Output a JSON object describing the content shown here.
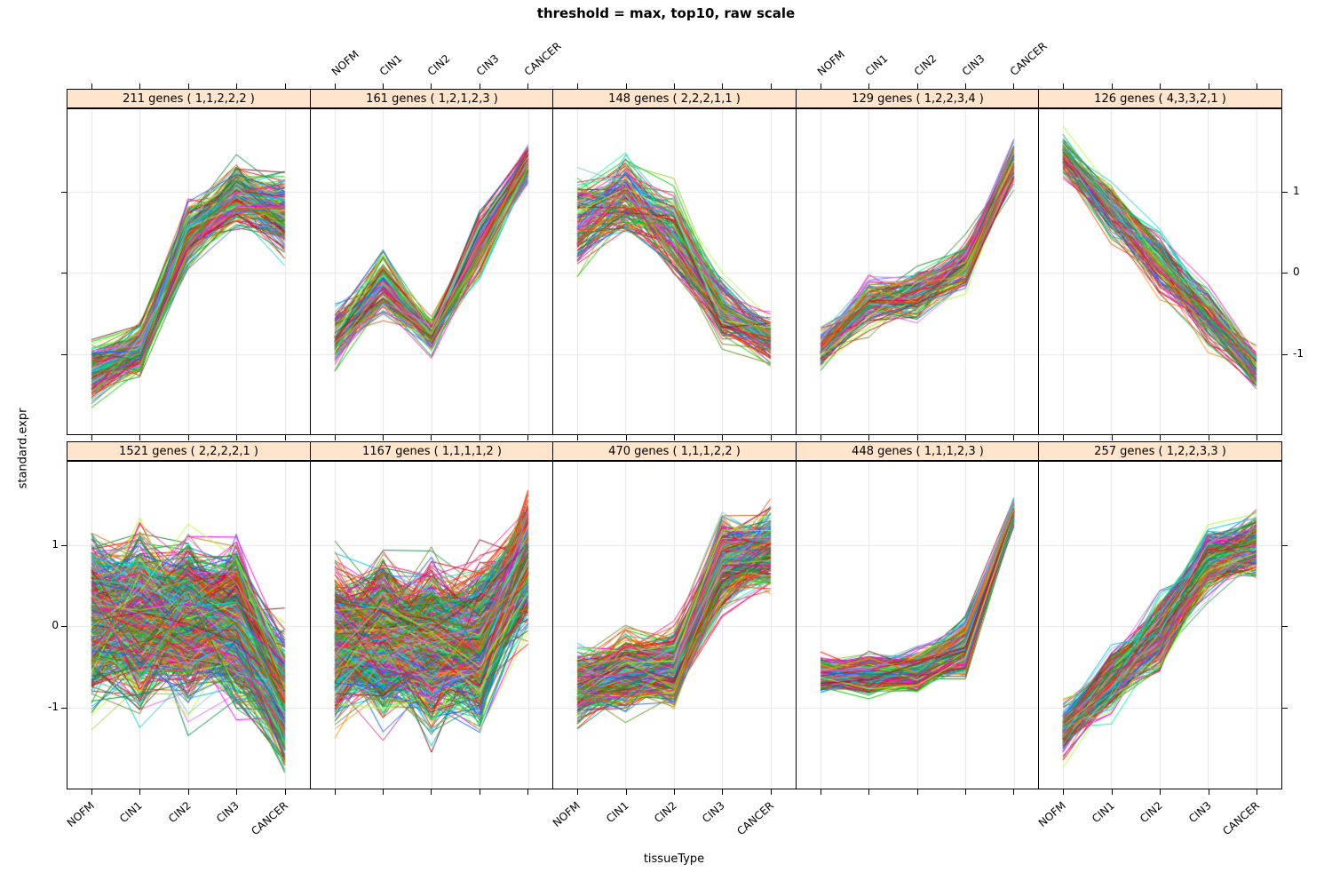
{
  "chart_data": {
    "type": "line",
    "title": "threshold = max, top10, raw scale",
    "xlabel": "tissueType",
    "ylabel": "standard.expr",
    "categories": [
      "NOFM",
      "CIN1",
      "CIN2",
      "CIN3",
      "CANCER"
    ],
    "ylim": [
      -2,
      2
    ],
    "yticks": [
      1,
      0,
      -1
    ],
    "grid": true,
    "strip_fill": "#ffe5cc",
    "grid_color": "#e6e6e6",
    "border_color": "#000000",
    "line_colors": [
      "#ff0000",
      "#00cd00",
      "#0066ff",
      "#ff00ff",
      "#ff8c00",
      "#008b45",
      "#8b2323",
      "#00cdcd",
      "#9acd32",
      "#cd2990",
      "#ff4500",
      "#228b22",
      "#4169e1",
      "#b8860b",
      "#00fa9a",
      "#dc143c",
      "#00bfff",
      "#adff2f",
      "#d2691e",
      "#e066ff",
      "#2e8b57",
      "#ff1493",
      "#7ac5cd",
      "#6b8e23"
    ],
    "layout_hints": {
      "rows": 2,
      "cols": 5,
      "x_label_rotation": 45,
      "top_x_labels_above_columns": [
        2,
        4
      ],
      "bottom_x_labels_below_columns": [
        1,
        3,
        5
      ],
      "y_labels_right_for_row": 1,
      "y_labels_left_for_row": 2,
      "legend": "none"
    },
    "panels": [
      {
        "row": 0,
        "col": 0,
        "label": "211 genes ( 1,1,2,2,2 )",
        "genes": 211,
        "pattern": [
          1,
          1,
          2,
          2,
          2
        ],
        "mean": [
          -1.25,
          -0.95,
          0.45,
          0.95,
          0.7
        ],
        "spread": [
          0.35,
          0.3,
          0.4,
          0.4,
          0.5
        ]
      },
      {
        "row": 0,
        "col": 1,
        "label": "161 genes ( 1,2,1,2,3 )",
        "genes": 161,
        "pattern": [
          1,
          2,
          1,
          2,
          3
        ],
        "mean": [
          -0.8,
          -0.15,
          -0.75,
          0.35,
          1.35
        ],
        "spread": [
          0.32,
          0.4,
          0.2,
          0.35,
          0.25
        ]
      },
      {
        "row": 0,
        "col": 2,
        "label": "148 genes ( 2,2,2,1,1 )",
        "genes": 148,
        "pattern": [
          2,
          2,
          2,
          1,
          1
        ],
        "mean": [
          0.6,
          0.9,
          0.45,
          -0.5,
          -0.85
        ],
        "spread": [
          0.55,
          0.45,
          0.5,
          0.4,
          0.3
        ]
      },
      {
        "row": 0,
        "col": 3,
        "label": "129 genes ( 1,2,2,3,4 )",
        "genes": 129,
        "pattern": [
          1,
          2,
          2,
          3,
          4
        ],
        "mean": [
          -0.95,
          -0.4,
          -0.3,
          0.1,
          1.35
        ],
        "spread": [
          0.25,
          0.3,
          0.3,
          0.3,
          0.25
        ]
      },
      {
        "row": 0,
        "col": 4,
        "label": "126 genes ( 4,3,3,2,1 )",
        "genes": 126,
        "pattern": [
          4,
          3,
          3,
          2,
          1
        ],
        "mean": [
          1.45,
          0.75,
          0.1,
          -0.55,
          -1.2
        ],
        "spread": [
          0.25,
          0.35,
          0.4,
          0.35,
          0.25
        ]
      },
      {
        "row": 1,
        "col": 0,
        "label": "1521 genes ( 2,2,2,2,1 )",
        "genes": 1521,
        "pattern": [
          2,
          2,
          2,
          2,
          1
        ],
        "mean": [
          0.1,
          0.1,
          0.1,
          0.05,
          -0.9
        ],
        "spread": [
          0.92,
          0.92,
          0.92,
          0.92,
          0.75
        ]
      },
      {
        "row": 1,
        "col": 1,
        "label": "1167 genes ( 1,1,1,1,2 )",
        "genes": 1167,
        "pattern": [
          1,
          1,
          1,
          1,
          2
        ],
        "mean": [
          -0.2,
          -0.2,
          -0.25,
          -0.2,
          0.8
        ],
        "spread": [
          0.85,
          0.9,
          0.9,
          0.9,
          0.7
        ]
      },
      {
        "row": 1,
        "col": 2,
        "label": "470 genes ( 1,1,1,2,2 )",
        "genes": 470,
        "pattern": [
          1,
          1,
          1,
          2,
          2
        ],
        "mean": [
          -0.75,
          -0.55,
          -0.5,
          0.75,
          0.95
        ],
        "spread": [
          0.4,
          0.45,
          0.45,
          0.5,
          0.45
        ]
      },
      {
        "row": 1,
        "col": 3,
        "label": "448 genes ( 1,1,1,2,3 )",
        "genes": 448,
        "pattern": [
          1,
          1,
          1,
          2,
          3
        ],
        "mean": [
          -0.6,
          -0.6,
          -0.55,
          -0.25,
          1.4
        ],
        "spread": [
          0.2,
          0.22,
          0.22,
          0.3,
          0.15
        ]
      },
      {
        "row": 1,
        "col": 4,
        "label": "257 genes ( 1,2,2,3,3 )",
        "genes": 257,
        "pattern": [
          1,
          2,
          2,
          3,
          3
        ],
        "mean": [
          -1.3,
          -0.65,
          -0.1,
          0.8,
          1.0
        ],
        "spread": [
          0.3,
          0.4,
          0.45,
          0.4,
          0.4
        ]
      }
    ]
  }
}
